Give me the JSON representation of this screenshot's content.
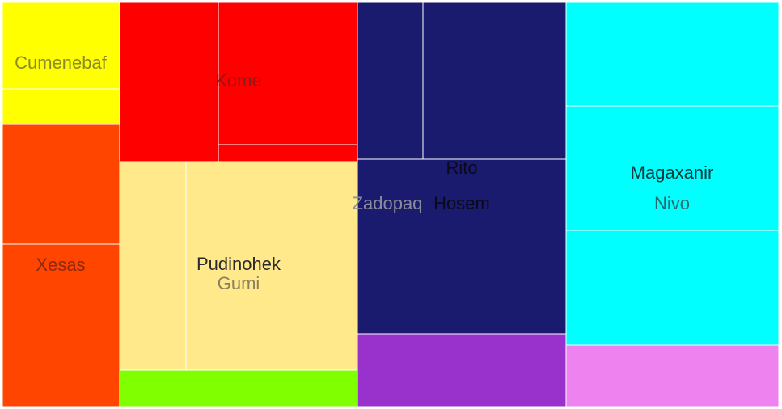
{
  "chart_data": {
    "type": "treemap",
    "title": "",
    "groups": [
      {
        "name": "Cumenebaf",
        "color": "#ffff00",
        "label_color": "#8a8a2a",
        "leaves": [
          {
            "value": 11
          },
          {
            "value": 3
          }
        ]
      },
      {
        "name": "Xesas",
        "color": "#ff4500",
        "label_color": "#8b2a12",
        "leaves": [
          {
            "value": 15
          },
          {
            "value": 21
          }
        ]
      },
      {
        "name": "Kome",
        "color": "#ff0000",
        "label_color": "#8b1a1a",
        "leaves": [
          {
            "value": 13
          },
          {
            "value": 20
          },
          {
            "value": 2
          }
        ]
      },
      {
        "name": "Pudinohek",
        "color": "#ffe98a",
        "label_color": "#2a2a2a",
        "leaves": [
          {
            "name": "Gumi",
            "value": 17,
            "label_color": "#8a8060"
          },
          {
            "value": 8
          }
        ]
      },
      {
        "name": "",
        "color": "#7fff00",
        "leaves": [
          {
            "value": 5
          }
        ]
      },
      {
        "name": "Rito",
        "color": "#1a1a6e",
        "label_color": "#0a0a1a",
        "leaves": [
          {
            "value": 5
          },
          {
            "value": 13
          },
          {
            "name": "Hosem",
            "value": 21,
            "label_color": "#0a0a1a"
          },
          {
            "name": "Zadopaq",
            "value": 0,
            "label_color": "#8a8a9a"
          }
        ]
      },
      {
        "name": "",
        "color": "#9932cc",
        "leaves": [
          {
            "value": 10
          }
        ]
      },
      {
        "name": "Magaxanir",
        "color": "#00ffff",
        "label_color": "#0a3a3a",
        "leaves": [
          {
            "value": 13
          },
          {
            "name": "Nivo",
            "value": 16,
            "label_color": "#2a6a6a"
          },
          {
            "value": 15
          }
        ]
      },
      {
        "name": "",
        "color": "#ee82ee",
        "leaves": [
          {
            "value": 8
          }
        ]
      }
    ]
  }
}
